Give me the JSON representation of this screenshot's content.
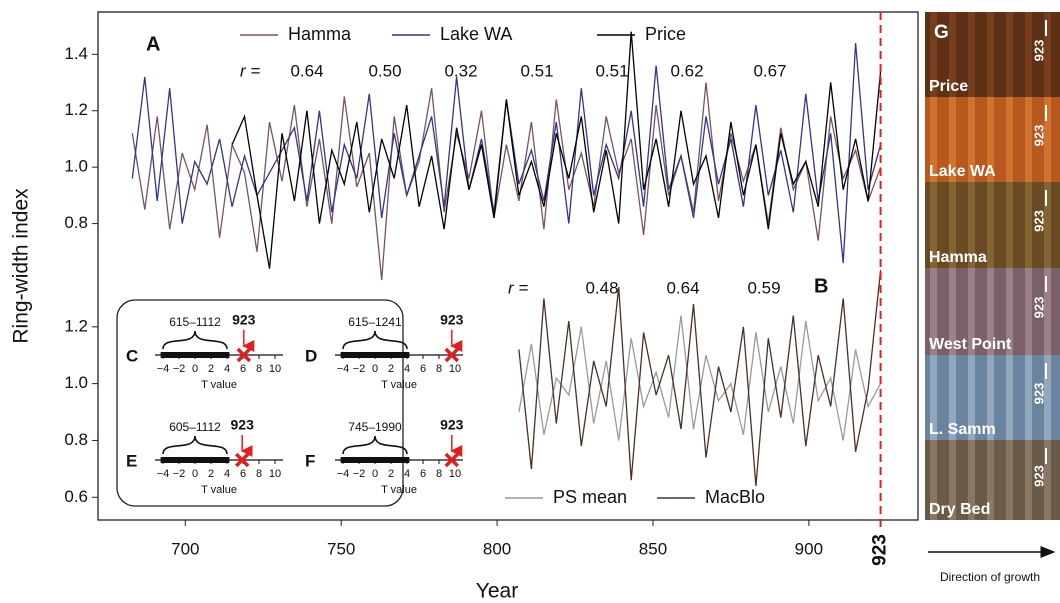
{
  "chart_data": [
    {
      "type": "line",
      "panel": "A",
      "xlabel": "Year",
      "ylabel": "Ring-width index",
      "xlim": [
        672,
        935
      ],
      "xticks": [
        700,
        750,
        800,
        850,
        900
      ],
      "event_year": 923,
      "ylim": [
        0.6,
        1.55
      ],
      "yticks": [
        0.8,
        {
          "value": 1,
          "label": "1.0"
        },
        1.2,
        1.4
      ],
      "r_label": "r =",
      "r_values": [
        0.64,
        {
          "value": 0.5,
          "label": "0.50"
        },
        0.32,
        0.51,
        0.51,
        0.62,
        0.67
      ],
      "x": [
        683,
        687,
        691,
        695,
        699,
        703,
        707,
        711,
        715,
        719,
        723,
        727,
        731,
        735,
        739,
        743,
        747,
        751,
        755,
        759,
        763,
        767,
        771,
        775,
        779,
        783,
        787,
        791,
        795,
        799,
        803,
        807,
        811,
        815,
        819,
        823,
        827,
        831,
        835,
        839,
        843,
        847,
        851,
        855,
        859,
        863,
        867,
        871,
        875,
        879,
        883,
        887,
        891,
        895,
        899,
        903,
        907,
        911,
        915,
        919,
        923
      ],
      "series": [
        {
          "name": "Hamma",
          "color": "#7a5262",
          "values": [
            1.12,
            0.85,
            1.18,
            0.78,
            1.05,
            0.92,
            1.15,
            0.75,
            1.08,
            0.98,
            0.7,
            1.16,
            0.95,
            1.22,
            0.86,
            1.1,
            0.8,
            1.25,
            0.93,
            1.05,
            0.6,
            1.18,
            0.9,
            1.02,
            1.28,
            0.84,
            1.12,
            0.96,
            1.2,
            0.82,
            1.08,
            0.88,
            1.16,
            0.78,
            1.24,
            0.92,
            1.05,
            0.86,
            1.18,
            0.98,
            1.1,
            0.76,
            1.22,
            0.9,
            1.04,
            0.84,
            1.3,
            0.88,
            1.12,
            0.95,
            1.08,
            0.8,
            1.14,
            0.92,
            1.02,
            0.74,
            1.18,
            0.96,
            1.06,
            0.88,
            1.0
          ]
        },
        {
          "name": "Lake WA",
          "color": "#34348a",
          "values": [
            0.96,
            1.32,
            0.88,
            1.28,
            0.8,
            1.02,
            0.94,
            1.1,
            0.86,
            1.04,
            0.9,
            0.98,
            1.06,
            1.14,
            0.88,
            1.2,
            0.84,
            1.08,
            0.96,
            1.26,
            0.82,
            1.12,
            0.9,
            1.04,
            1.18,
            0.86,
            1.32,
            0.92,
            1.1,
            0.84,
            1.24,
            0.94,
            1.06,
            0.88,
            1.16,
            0.8,
            1.28,
            0.9,
            1.08,
            0.96,
            1.2,
            0.86,
            1.36,
            0.92,
            1.04,
            0.82,
            1.18,
            0.94,
            1.1,
            0.86,
            1.22,
            0.9,
            1.06,
            0.84,
            1.26,
            0.88,
            1.12,
            0.66,
            1.44,
            0.92,
            1.08
          ]
        },
        {
          "name": "Price",
          "color": "#000000",
          "values": [
            null,
            null,
            null,
            null,
            null,
            null,
            null,
            null,
            1.08,
            1.18,
            0.9,
            0.64,
            1.12,
            0.88,
            1.2,
            0.8,
            1.06,
            0.94,
            1.16,
            0.84,
            1.1,
            0.96,
            1.22,
            0.86,
            1.04,
            0.78,
            1.14,
            0.92,
            1.08,
            0.82,
            1.24,
            0.9,
            1.02,
            0.86,
            1.12,
            0.96,
            1.18,
            0.84,
            1.06,
            0.8,
            1.48,
            0.92,
            1.1,
            0.86,
            1.2,
            0.94,
            1.04,
            0.82,
            1.16,
            0.9,
            1.08,
            0.78,
            1.12,
            0.94,
            1.02,
            0.86,
            1.3,
            0.92,
            1.1,
            0.88,
            1.34
          ]
        }
      ]
    },
    {
      "type": "line",
      "panel": "B",
      "ylim": [
        0.52,
        1.4
      ],
      "yticks": [
        0.6,
        0.8,
        {
          "value": 1,
          "label": "1.0"
        },
        1.2
      ],
      "r_label": "r =",
      "r_values": [
        0.48,
        0.64,
        0.59
      ],
      "x": [
        807,
        811,
        815,
        819,
        823,
        827,
        831,
        835,
        839,
        843,
        847,
        851,
        855,
        859,
        863,
        867,
        871,
        875,
        879,
        883,
        887,
        891,
        895,
        899,
        903,
        907,
        911,
        915,
        919,
        923
      ],
      "series": [
        {
          "name": "PS mean",
          "color": "#9a9a9a",
          "values": [
            0.9,
            1.14,
            0.82,
            1.02,
            0.96,
            1.2,
            0.86,
            1.08,
            0.8,
            1.16,
            0.92,
            1.04,
            0.88,
            1.24,
            0.84,
            1.1,
            0.94,
            1.0,
            0.82,
            1.18,
            0.9,
            1.06,
            0.86,
            1.22,
            0.94,
            1.02,
            0.8,
            1.12,
            0.92,
            1.0
          ]
        },
        {
          "name": "MacBlo",
          "color": "#4a3026",
          "values": [
            1.12,
            0.7,
            1.3,
            0.86,
            1.22,
            0.78,
            1.08,
            0.92,
            1.34,
            0.66,
            1.18,
            0.96,
            1.1,
            0.84,
            1.28,
            0.74,
            1.06,
            0.9,
            1.2,
            0.64,
            1.16,
            0.88,
            1.24,
            0.78,
            1.1,
            0.92,
            1.3,
            0.76,
            0.98,
            1.4
          ]
        }
      ]
    },
    {
      "type": "strip",
      "panel": "C",
      "range_label": "615–1112",
      "event_year": 923,
      "marker": 6.1,
      "xlabel": "T value",
      "xlim": [
        -5,
        11
      ],
      "xticks": [
        {
          "value": -4,
          "label": "−4"
        },
        {
          "value": -2,
          "label": "−2"
        },
        0,
        2,
        4,
        6,
        8,
        10
      ]
    },
    {
      "type": "strip",
      "panel": "D",
      "range_label": "615–1241",
      "event_year": 923,
      "marker": 9.6,
      "xlabel": "T value",
      "xlim": [
        -5,
        11
      ],
      "xticks": [
        {
          "value": -4,
          "label": "−4"
        },
        {
          "value": -2,
          "label": "−2"
        },
        0,
        2,
        4,
        6,
        8,
        10
      ]
    },
    {
      "type": "strip",
      "panel": "E",
      "range_label": "605–1112",
      "event_year": 923,
      "marker": 5.9,
      "xlabel": "T value",
      "xlim": [
        -5,
        11
      ],
      "xticks": [
        {
          "value": -4,
          "label": "−4"
        },
        {
          "value": -2,
          "label": "−2"
        },
        0,
        2,
        4,
        6,
        8,
        10
      ]
    },
    {
      "type": "strip",
      "panel": "F",
      "range_label": "745–1990",
      "event_year": 923,
      "marker": 9.6,
      "xlabel": "T value",
      "xlim": [
        -5,
        11
      ],
      "xticks": [
        {
          "value": -4,
          "label": "−4"
        },
        {
          "value": -2,
          "label": "−2"
        },
        0,
        2,
        4,
        6,
        8,
        10
      ]
    }
  ],
  "photos": {
    "panel": "G",
    "year_label": 923,
    "labels": [
      "Price",
      "Lake WA",
      "Hamma",
      "West Point",
      "L. Samm",
      "Dry Bed"
    ],
    "caption": "Direction of growth"
  }
}
